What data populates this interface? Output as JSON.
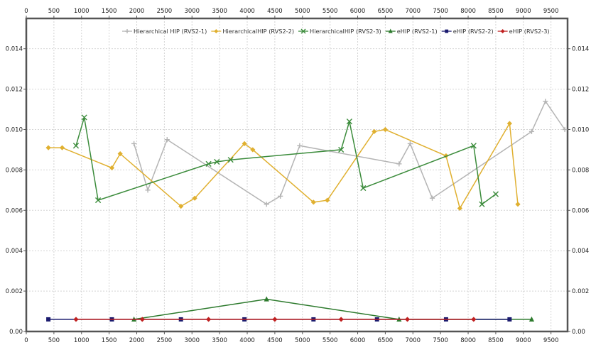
{
  "chart_data": {
    "type": "line",
    "title": "",
    "xlabel": "",
    "ylabel": "",
    "xlim": [
      0,
      9800
    ],
    "ylim": [
      0,
      0.0155
    ],
    "x_ticks": [
      "0",
      "500",
      "1000",
      "1500",
      "2000",
      "2500",
      "3000",
      "3500",
      "4000",
      "4500",
      "5000",
      "5500",
      "6000",
      "6500",
      "7000",
      "7500",
      "8000",
      "8500",
      "9000",
      "9500"
    ],
    "y_ticks": [
      "0.00",
      "0.002",
      "0.004",
      "0.006",
      "0.008",
      "0.010",
      "0.012",
      "0.014"
    ],
    "grid": true,
    "legend_position": "top-center",
    "series": [
      {
        "name": "Hierarchical HIP (RVS2-1)",
        "color": "#b4b4b4",
        "marker": "plus",
        "points": [
          [
            1950,
            0.0093
          ],
          [
            2200,
            0.007
          ],
          [
            2550,
            0.0095
          ],
          [
            4350,
            0.0063
          ],
          [
            4600,
            0.0067
          ],
          [
            4950,
            0.0092
          ],
          [
            6750,
            0.0083
          ],
          [
            6950,
            0.0093
          ],
          [
            7350,
            0.0066
          ],
          [
            9150,
            0.0099
          ],
          [
            9400,
            0.0114
          ],
          [
            9750,
            0.01
          ]
        ]
      },
      {
        "name": "HierarchicalHIP (RVS2-2)",
        "color": "#e0b030",
        "marker": "diamond",
        "points": [
          [
            400,
            0.0091
          ],
          [
            650,
            0.0091
          ],
          [
            1550,
            0.0081
          ],
          [
            1700,
            0.0088
          ],
          [
            2800,
            0.0062
          ],
          [
            3050,
            0.0066
          ],
          [
            3950,
            0.0093
          ],
          [
            4100,
            0.009
          ],
          [
            5200,
            0.0064
          ],
          [
            5450,
            0.0065
          ],
          [
            6300,
            0.0099
          ],
          [
            6500,
            0.01
          ],
          [
            7600,
            0.0087
          ],
          [
            7850,
            0.0061
          ],
          [
            8750,
            0.0103
          ],
          [
            8900,
            0.0063
          ]
        ]
      },
      {
        "name": "HierarchicalHIP (RVS2-3)",
        "color": "#3c8c3c",
        "marker": "x",
        "points": [
          [
            900,
            0.0092
          ],
          [
            1050,
            0.0106
          ],
          [
            1300,
            0.0065
          ],
          [
            3300,
            0.0083
          ],
          [
            3450,
            0.0084
          ],
          [
            3700,
            0.0085
          ],
          [
            5700,
            0.009
          ],
          [
            5850,
            0.0104
          ],
          [
            6100,
            0.0071
          ],
          [
            8100,
            0.0092
          ],
          [
            8250,
            0.0063
          ],
          [
            8500,
            0.0068
          ]
        ]
      },
      {
        "name": "eHIP (RVS2-1)",
        "color": "#2d7a2d",
        "marker": "triangle",
        "points": [
          [
            1950,
            0.0006
          ],
          [
            4350,
            0.0016
          ],
          [
            6750,
            0.0006
          ],
          [
            9150,
            0.0006
          ]
        ]
      },
      {
        "name": "eHIP (RVS2-2)",
        "color": "#1a1a6e",
        "marker": "square",
        "points": [
          [
            400,
            0.0006
          ],
          [
            1550,
            0.0006
          ],
          [
            2800,
            0.0006
          ],
          [
            3950,
            0.0006
          ],
          [
            5200,
            0.0006
          ],
          [
            6350,
            0.0006
          ],
          [
            7600,
            0.0006
          ],
          [
            8750,
            0.0006
          ]
        ]
      },
      {
        "name": "eHIP (RVS2-3)",
        "color": "#c02020",
        "marker": "diamond",
        "points": [
          [
            900,
            0.0006
          ],
          [
            2100,
            0.0006
          ],
          [
            3300,
            0.0006
          ],
          [
            4500,
            0.0006
          ],
          [
            5700,
            0.0006
          ],
          [
            6900,
            0.0006
          ],
          [
            8100,
            0.0006
          ]
        ]
      }
    ]
  }
}
